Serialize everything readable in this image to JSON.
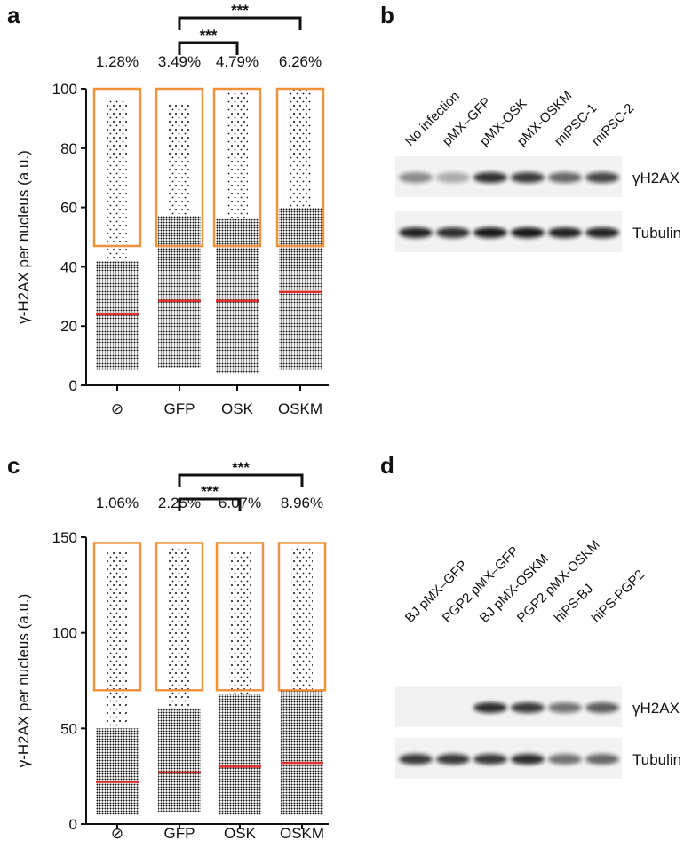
{
  "chart_data": [
    {
      "type": "strip",
      "panel": "a",
      "ylabel": "γ-H2AX per nucleus (a.u.)",
      "categories": [
        "⊘",
        "GFP",
        "OSK",
        "OSKM"
      ],
      "ylim": [
        0,
        100
      ],
      "yticks": [
        0,
        20,
        40,
        60,
        80,
        100
      ],
      "percent_above_threshold": {
        "values": [
          1.28,
          3.49,
          4.79,
          6.26
        ],
        "value_labels": [
          "1.28%",
          "3.49%",
          "4.79%",
          "6.26%"
        ]
      },
      "threshold": 47,
      "box_top": 100,
      "box_color": "#f0923a",
      "medians": [
        24,
        28.5,
        28.5,
        31.5
      ],
      "median_color": "#e0302b",
      "min": [
        5,
        6,
        4,
        5
      ],
      "dense_top": [
        42,
        57,
        56,
        60
      ],
      "max": [
        96,
        95,
        99,
        100
      ],
      "significance": [
        {
          "from": 1,
          "to": 2,
          "label": "***"
        },
        {
          "from": 1,
          "to": 3,
          "label": "***"
        }
      ]
    },
    {
      "type": "strip",
      "panel": "c",
      "ylabel": "γ-H2AX per nucleus (a.u.)",
      "categories": [
        "⊘",
        "GFP",
        "OSK",
        "OSKM"
      ],
      "ylim": [
        0,
        150
      ],
      "yticks": [
        0,
        50,
        100,
        150
      ],
      "percent_above_threshold": {
        "values": [
          1.06,
          2.25,
          6.07,
          8.96
        ],
        "value_labels": [
          "1.06%",
          "2.25%",
          "6.07%",
          "8.96%"
        ]
      },
      "threshold": 70,
      "box_top": 147,
      "box_color": "#f0923a",
      "medians": [
        22,
        27,
        30,
        32
      ],
      "median_color": "#e0302b",
      "min": [
        5,
        6,
        5,
        5
      ],
      "dense_top": [
        50,
        60,
        68,
        70
      ],
      "max": [
        143,
        145,
        143,
        145
      ],
      "significance": [
        {
          "from": 1,
          "to": 2,
          "label": "***"
        },
        {
          "from": 1,
          "to": 3,
          "label": "***"
        }
      ]
    }
  ],
  "blots": [
    {
      "panel": "b",
      "lanes": [
        "No infection",
        "pMX–GFP",
        "pMX-OSK",
        "pMX-OSKM",
        "miPSC-1",
        "miPSC-2"
      ],
      "rows": [
        "γH2AX",
        "Tubulin"
      ]
    },
    {
      "panel": "d",
      "lanes": [
        "BJ pMX–GFP",
        "PGP2 pMX–GFP",
        "BJ pMX-OSKM",
        "PGP2 pMX-OSKM",
        "hiPS-BJ",
        "hiPS-PGP2"
      ],
      "rows": [
        "γH2AX",
        "Tubulin"
      ]
    }
  ]
}
